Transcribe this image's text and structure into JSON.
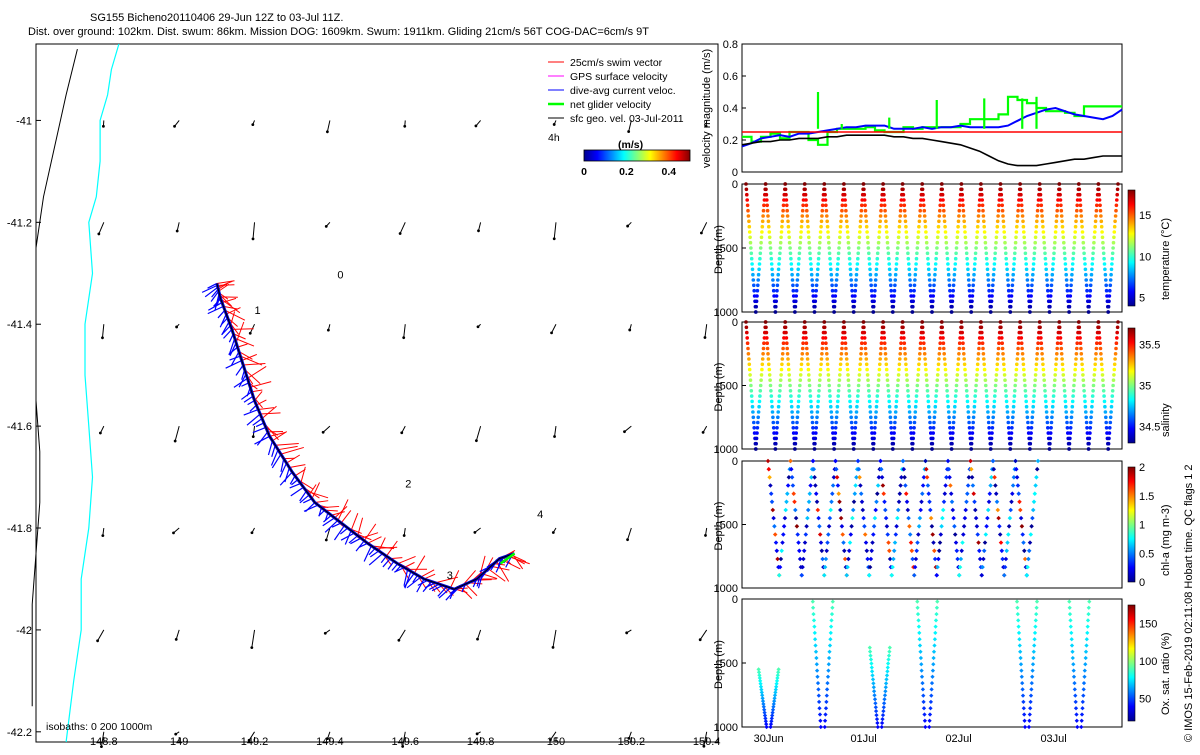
{
  "header": {
    "line1": "SG155 Bicheno20110406 29-Jun 12Z to 03-Jul 11Z.",
    "line2": "Dist. over ground: 102km. Dist. swum: 86km. Mission DOG: 1609km. Swum: 1911km. Gliding 21cm/s 56T COG-DAC=6cm/s 9T"
  },
  "side_label": "© IMOS 15-Feb-2019 02:11:08 Hobart time. QC flags 1  2",
  "colors": {
    "swim_vector": "#ff0000",
    "gps_velocity": "#ff00ff",
    "dive_current": "#0000ff",
    "net_glider": "#00ff00",
    "sfc_geo": "#000000",
    "isobath_0": "#000000",
    "isobath_200": "#00ffff",
    "speed_limit": "#ff0000"
  },
  "chart_data": [
    {
      "id": "map",
      "type": "scatter",
      "title": "",
      "xlabel": "",
      "ylabel": "",
      "xlim": [
        148.62,
        150.43
      ],
      "ylim": [
        -42.22,
        -40.85
      ],
      "xticks": [
        "148.8",
        "149",
        "149.2",
        "149.4",
        "149.6",
        "149.8",
        "150",
        "150.2",
        "150.4"
      ],
      "yticks": [
        "-41",
        "-41.2",
        "-41.4",
        "-41.6",
        "-41.8",
        "-42",
        "-42.2"
      ],
      "legend": [
        {
          "label": "25cm/s swim vector",
          "color": "#ff0000"
        },
        {
          "label": "GPS surface velocity",
          "color": "#ff00ff"
        },
        {
          "label": "dive-avg current veloc.",
          "color": "#0000ff"
        },
        {
          "label": "net glider velocity",
          "color": "#00ff00"
        },
        {
          "label": "sfc geo. vel. 03-Jul-2011",
          "color": "#000000"
        }
      ],
      "legend_extra": "4h",
      "colorbar": {
        "label": "(m/s)",
        "ticks": [
          "0",
          "0.2",
          "0.4"
        ],
        "range": [
          0,
          0.5
        ]
      },
      "isobaths_label": "isobaths: 0   200   1000m",
      "day_labels": [
        {
          "text": "0",
          "lon": 149.42,
          "lat": -41.31
        },
        {
          "text": "1",
          "lon": 149.2,
          "lat": -41.38
        },
        {
          "text": "2",
          "lon": 149.6,
          "lat": -41.72
        },
        {
          "text": "3",
          "lon": 149.71,
          "lat": -41.9
        },
        {
          "text": "4",
          "lon": 149.95,
          "lat": -41.78
        }
      ],
      "track": [
        [
          149.1,
          -41.32
        ],
        [
          149.11,
          -41.35
        ],
        [
          149.14,
          -41.41
        ],
        [
          149.17,
          -41.48
        ],
        [
          149.2,
          -41.55
        ],
        [
          149.24,
          -41.62
        ],
        [
          149.3,
          -41.69
        ],
        [
          149.36,
          -41.75
        ],
        [
          149.43,
          -41.79
        ],
        [
          149.5,
          -41.83
        ],
        [
          149.58,
          -41.87
        ],
        [
          149.65,
          -41.9
        ],
        [
          149.73,
          -41.92
        ],
        [
          149.79,
          -41.9
        ],
        [
          149.85,
          -41.86
        ],
        [
          149.89,
          -41.85
        ]
      ],
      "isobath_0": [
        [
          148.73,
          -40.86
        ],
        [
          148.7,
          -40.95
        ],
        [
          148.67,
          -41.05
        ],
        [
          148.64,
          -41.15
        ],
        [
          148.62,
          -41.25
        ],
        [
          148.62,
          -41.35
        ],
        [
          148.62,
          -41.45
        ],
        [
          148.62,
          -41.55
        ],
        [
          148.63,
          -41.65
        ],
        [
          148.63,
          -41.75
        ],
        [
          148.62,
          -41.85
        ],
        [
          148.61,
          -41.95
        ],
        [
          148.61,
          -42.05
        ],
        [
          148.61,
          -42.15
        ]
      ],
      "isobath_200": [
        [
          148.84,
          -40.85
        ],
        [
          148.82,
          -40.9
        ],
        [
          148.81,
          -40.95
        ],
        [
          148.79,
          -41.0
        ],
        [
          148.79,
          -41.08
        ],
        [
          148.78,
          -41.15
        ],
        [
          148.76,
          -41.2
        ],
        [
          148.77,
          -41.3
        ],
        [
          148.75,
          -41.4
        ],
        [
          148.75,
          -41.5
        ],
        [
          148.76,
          -41.6
        ],
        [
          148.77,
          -41.7
        ],
        [
          148.76,
          -41.8
        ],
        [
          148.74,
          -41.9
        ],
        [
          148.74,
          -42.0
        ],
        [
          148.72,
          -42.1
        ],
        [
          148.7,
          -42.22
        ]
      ],
      "sfc_geo_grid": {
        "lons": [
          148.8,
          149.0,
          149.2,
          149.4,
          149.6,
          149.8,
          150.0,
          150.2,
          150.4
        ],
        "lats": [
          -41.0,
          -41.2,
          -41.4,
          -41.6,
          -41.8,
          -42.0,
          -42.2
        ],
        "note_units": "m/s"
      }
    },
    {
      "id": "speed",
      "type": "line",
      "ylabel": "velocity magnitude (m/s)",
      "ylim": [
        0,
        0.8
      ],
      "yticks": [
        "0",
        "0.2",
        "0.4",
        "0.6",
        "0.8"
      ],
      "x": [
        0,
        0.1,
        0.2,
        0.3,
        0.4,
        0.5,
        0.6,
        0.7,
        0.8,
        0.9,
        1.0,
        1.1,
        1.2,
        1.3,
        1.4,
        1.5,
        1.6,
        1.7,
        1.8,
        1.9,
        2.0,
        2.1,
        2.2,
        2.3,
        2.4,
        2.5,
        2.6,
        2.7,
        2.8,
        2.9,
        3.0,
        3.1,
        3.2,
        3.3,
        3.4,
        3.5,
        3.6,
        3.7,
        3.8,
        3.9,
        4.0
      ],
      "series": [
        {
          "color": "#00ff00",
          "values": [
            0.22,
            0.19,
            0.22,
            0.24,
            0.21,
            0.25,
            0.25,
            0.2,
            0.17,
            0.25,
            0.27,
            0.27,
            0.27,
            0.28,
            0.26,
            0.25,
            0.25,
            0.28,
            0.27,
            0.28,
            0.28,
            0.28,
            0.28,
            0.3,
            0.33,
            0.33,
            0.33,
            0.36,
            0.47,
            0.45,
            0.43,
            0.4,
            0.38,
            0.38,
            0.37,
            0.35,
            0.41,
            0.41,
            0.41,
            0.41,
            0.41
          ]
        },
        {
          "color": "#0000ff",
          "values": [
            0.16,
            0.18,
            0.21,
            0.22,
            0.23,
            0.22,
            0.24,
            0.24,
            0.25,
            0.26,
            0.27,
            0.28,
            0.28,
            0.29,
            0.29,
            0.29,
            0.27,
            0.27,
            0.27,
            0.28,
            0.27,
            0.28,
            0.28,
            0.29,
            0.28,
            0.28,
            0.28,
            0.28,
            0.29,
            0.32,
            0.35,
            0.37,
            0.39,
            0.4,
            0.38,
            0.36,
            0.35,
            0.34,
            0.33,
            0.35,
            0.39
          ]
        },
        {
          "color": "#ff0000",
          "values": [
            0.25,
            0.25,
            0.25,
            0.25,
            0.25,
            0.25,
            0.25,
            0.25,
            0.25,
            0.25,
            0.25,
            0.25,
            0.25,
            0.25,
            0.25,
            0.25,
            0.25,
            0.25,
            0.25,
            0.25,
            0.25,
            0.25,
            0.25,
            0.25,
            0.25,
            0.25,
            0.25,
            0.25,
            0.25,
            0.25,
            0.25,
            0.25,
            0.25,
            0.25,
            0.25,
            0.25,
            0.25,
            0.25,
            0.25,
            0.25,
            0.25
          ]
        },
        {
          "color": "#000000",
          "values": [
            0.17,
            0.18,
            0.19,
            0.19,
            0.2,
            0.2,
            0.21,
            0.21,
            0.21,
            0.22,
            0.22,
            0.23,
            0.23,
            0.23,
            0.23,
            0.23,
            0.22,
            0.22,
            0.21,
            0.21,
            0.2,
            0.19,
            0.18,
            0.17,
            0.15,
            0.13,
            0.1,
            0.07,
            0.05,
            0.04,
            0.04,
            0.04,
            0.05,
            0.06,
            0.07,
            0.08,
            0.08,
            0.09,
            0.1,
            0.1,
            0.1
          ]
        }
      ],
      "green_spikes": [
        {
          "x": 0.8,
          "y": 0.5
        },
        {
          "x": 1.05,
          "y": 0.3
        },
        {
          "x": 1.55,
          "y": 0.34
        },
        {
          "x": 2.05,
          "y": 0.45
        },
        {
          "x": 2.55,
          "y": 0.46
        },
        {
          "x": 2.95,
          "y": 0.46
        },
        {
          "x": 3.1,
          "y": 0.47
        }
      ]
    },
    {
      "id": "temperature",
      "type": "scatter",
      "ylabel": "Depth (m)",
      "cbar_label": "temperature (°C)",
      "ylim": [
        1000,
        0
      ],
      "yticks": [
        "0",
        "500",
        "1000"
      ],
      "cticks": [
        "5",
        "10",
        "15"
      ],
      "crange": [
        4,
        18
      ],
      "n_dives": 19,
      "max_depth": 1000
    },
    {
      "id": "salinity",
      "type": "scatter",
      "ylabel": "Depth (m)",
      "cbar_label": "salinity",
      "ylim": [
        1000,
        0
      ],
      "yticks": [
        "0",
        "500",
        "1000"
      ],
      "cticks": [
        "34.5",
        "35",
        "35.5"
      ],
      "crange": [
        34.3,
        35.7
      ],
      "n_dives": 19,
      "max_depth": 1000
    },
    {
      "id": "chla",
      "type": "scatter",
      "ylabel": "Depth (m)",
      "cbar_label": "chl-a (mg m-3)",
      "ylim": [
        1000,
        0
      ],
      "yticks": [
        "0",
        "500",
        "1000"
      ],
      "cticks": [
        "0",
        "0.5",
        "1",
        "1.5",
        "2"
      ],
      "crange": [
        0,
        2
      ],
      "n_dives": 12
    },
    {
      "id": "oxygen",
      "type": "scatter",
      "ylabel": "Depth (m)",
      "cbar_label": "Ox. sat. ratio (%)",
      "ylim": [
        1000,
        0
      ],
      "yticks": [
        "0",
        "500",
        "1000"
      ],
      "cticks": [
        "50",
        "100",
        "150"
      ],
      "crange": [
        20,
        175
      ],
      "xticks": [
        "30Jun",
        "01Jul",
        "02Jul",
        "03Jul"
      ],
      "v_dives": [
        {
          "x": 0.28,
          "top": 0.55
        },
        {
          "x": 0.85,
          "top": 0.02
        },
        {
          "x": 1.45,
          "top": 0.38
        },
        {
          "x": 1.95,
          "top": 0.02
        },
        {
          "x": 3.0,
          "top": 0.02
        },
        {
          "x": 3.55,
          "top": 0.02
        }
      ]
    }
  ]
}
